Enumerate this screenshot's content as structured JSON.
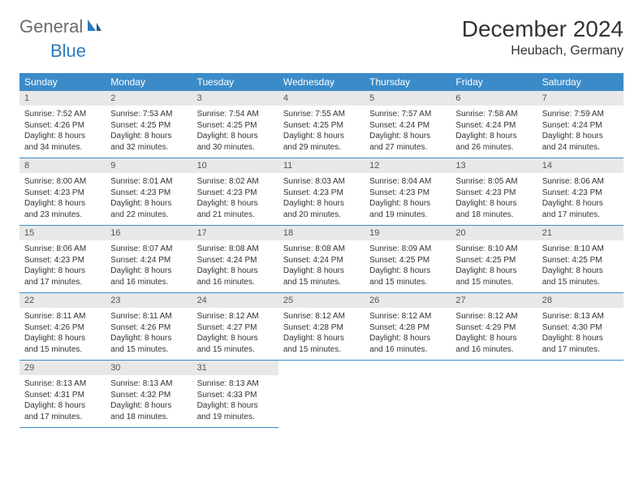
{
  "logo": {
    "text1": "General",
    "text2": "Blue"
  },
  "title": "December 2024",
  "location": "Heubach, Germany",
  "day_names": [
    "Sunday",
    "Monday",
    "Tuesday",
    "Wednesday",
    "Thursday",
    "Friday",
    "Saturday"
  ],
  "colors": {
    "header_bg": "#3b8bc9",
    "daynum_bg": "#e8e8e8",
    "border": "#3b8bc9",
    "logo_gray": "#6b6b6b",
    "logo_blue": "#2a7abf"
  },
  "weeks": [
    [
      {
        "n": "1",
        "sr": "Sunrise: 7:52 AM",
        "ss": "Sunset: 4:26 PM",
        "dl": "Daylight: 8 hours and 34 minutes."
      },
      {
        "n": "2",
        "sr": "Sunrise: 7:53 AM",
        "ss": "Sunset: 4:25 PM",
        "dl": "Daylight: 8 hours and 32 minutes."
      },
      {
        "n": "3",
        "sr": "Sunrise: 7:54 AM",
        "ss": "Sunset: 4:25 PM",
        "dl": "Daylight: 8 hours and 30 minutes."
      },
      {
        "n": "4",
        "sr": "Sunrise: 7:55 AM",
        "ss": "Sunset: 4:25 PM",
        "dl": "Daylight: 8 hours and 29 minutes."
      },
      {
        "n": "5",
        "sr": "Sunrise: 7:57 AM",
        "ss": "Sunset: 4:24 PM",
        "dl": "Daylight: 8 hours and 27 minutes."
      },
      {
        "n": "6",
        "sr": "Sunrise: 7:58 AM",
        "ss": "Sunset: 4:24 PM",
        "dl": "Daylight: 8 hours and 26 minutes."
      },
      {
        "n": "7",
        "sr": "Sunrise: 7:59 AM",
        "ss": "Sunset: 4:24 PM",
        "dl": "Daylight: 8 hours and 24 minutes."
      }
    ],
    [
      {
        "n": "8",
        "sr": "Sunrise: 8:00 AM",
        "ss": "Sunset: 4:23 PM",
        "dl": "Daylight: 8 hours and 23 minutes."
      },
      {
        "n": "9",
        "sr": "Sunrise: 8:01 AM",
        "ss": "Sunset: 4:23 PM",
        "dl": "Daylight: 8 hours and 22 minutes."
      },
      {
        "n": "10",
        "sr": "Sunrise: 8:02 AM",
        "ss": "Sunset: 4:23 PM",
        "dl": "Daylight: 8 hours and 21 minutes."
      },
      {
        "n": "11",
        "sr": "Sunrise: 8:03 AM",
        "ss": "Sunset: 4:23 PM",
        "dl": "Daylight: 8 hours and 20 minutes."
      },
      {
        "n": "12",
        "sr": "Sunrise: 8:04 AM",
        "ss": "Sunset: 4:23 PM",
        "dl": "Daylight: 8 hours and 19 minutes."
      },
      {
        "n": "13",
        "sr": "Sunrise: 8:05 AM",
        "ss": "Sunset: 4:23 PM",
        "dl": "Daylight: 8 hours and 18 minutes."
      },
      {
        "n": "14",
        "sr": "Sunrise: 8:06 AM",
        "ss": "Sunset: 4:23 PM",
        "dl": "Daylight: 8 hours and 17 minutes."
      }
    ],
    [
      {
        "n": "15",
        "sr": "Sunrise: 8:06 AM",
        "ss": "Sunset: 4:23 PM",
        "dl": "Daylight: 8 hours and 17 minutes."
      },
      {
        "n": "16",
        "sr": "Sunrise: 8:07 AM",
        "ss": "Sunset: 4:24 PM",
        "dl": "Daylight: 8 hours and 16 minutes."
      },
      {
        "n": "17",
        "sr": "Sunrise: 8:08 AM",
        "ss": "Sunset: 4:24 PM",
        "dl": "Daylight: 8 hours and 16 minutes."
      },
      {
        "n": "18",
        "sr": "Sunrise: 8:08 AM",
        "ss": "Sunset: 4:24 PM",
        "dl": "Daylight: 8 hours and 15 minutes."
      },
      {
        "n": "19",
        "sr": "Sunrise: 8:09 AM",
        "ss": "Sunset: 4:25 PM",
        "dl": "Daylight: 8 hours and 15 minutes."
      },
      {
        "n": "20",
        "sr": "Sunrise: 8:10 AM",
        "ss": "Sunset: 4:25 PM",
        "dl": "Daylight: 8 hours and 15 minutes."
      },
      {
        "n": "21",
        "sr": "Sunrise: 8:10 AM",
        "ss": "Sunset: 4:25 PM",
        "dl": "Daylight: 8 hours and 15 minutes."
      }
    ],
    [
      {
        "n": "22",
        "sr": "Sunrise: 8:11 AM",
        "ss": "Sunset: 4:26 PM",
        "dl": "Daylight: 8 hours and 15 minutes."
      },
      {
        "n": "23",
        "sr": "Sunrise: 8:11 AM",
        "ss": "Sunset: 4:26 PM",
        "dl": "Daylight: 8 hours and 15 minutes."
      },
      {
        "n": "24",
        "sr": "Sunrise: 8:12 AM",
        "ss": "Sunset: 4:27 PM",
        "dl": "Daylight: 8 hours and 15 minutes."
      },
      {
        "n": "25",
        "sr": "Sunrise: 8:12 AM",
        "ss": "Sunset: 4:28 PM",
        "dl": "Daylight: 8 hours and 15 minutes."
      },
      {
        "n": "26",
        "sr": "Sunrise: 8:12 AM",
        "ss": "Sunset: 4:28 PM",
        "dl": "Daylight: 8 hours and 16 minutes."
      },
      {
        "n": "27",
        "sr": "Sunrise: 8:12 AM",
        "ss": "Sunset: 4:29 PM",
        "dl": "Daylight: 8 hours and 16 minutes."
      },
      {
        "n": "28",
        "sr": "Sunrise: 8:13 AM",
        "ss": "Sunset: 4:30 PM",
        "dl": "Daylight: 8 hours and 17 minutes."
      }
    ],
    [
      {
        "n": "29",
        "sr": "Sunrise: 8:13 AM",
        "ss": "Sunset: 4:31 PM",
        "dl": "Daylight: 8 hours and 17 minutes."
      },
      {
        "n": "30",
        "sr": "Sunrise: 8:13 AM",
        "ss": "Sunset: 4:32 PM",
        "dl": "Daylight: 8 hours and 18 minutes."
      },
      {
        "n": "31",
        "sr": "Sunrise: 8:13 AM",
        "ss": "Sunset: 4:33 PM",
        "dl": "Daylight: 8 hours and 19 minutes."
      },
      null,
      null,
      null,
      null
    ]
  ]
}
